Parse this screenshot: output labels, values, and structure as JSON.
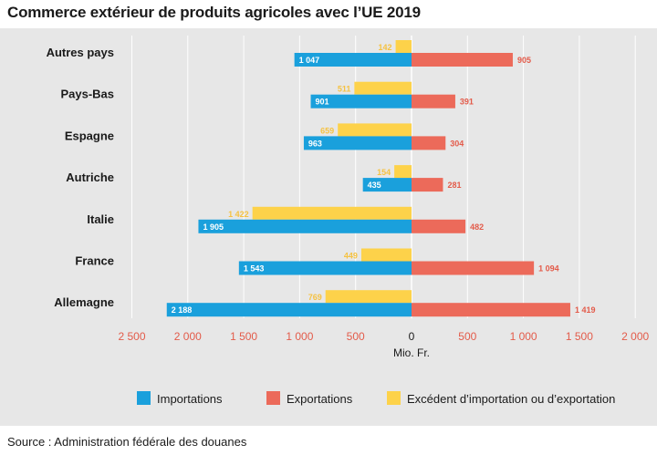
{
  "chart_data": {
    "type": "bar",
    "orientation": "horizontal",
    "title": "Commerce extérieur de produits agricoles avec l’UE 2019",
    "xlabel": "Mio. Fr.",
    "xlim": [
      -2500,
      2000
    ],
    "categories": [
      "Autres pays",
      "Pays-Bas",
      "Espagne",
      "Autriche",
      "Italie",
      "France",
      "Allemagne"
    ],
    "series": [
      {
        "name": "Importations",
        "color": "#1aa0dc",
        "values": [
          1047,
          901,
          963,
          435,
          1905,
          1543,
          2188
        ],
        "labels": [
          "1 047",
          "901",
          "963",
          "435",
          "1 905",
          "1 543",
          "2 188"
        ]
      },
      {
        "name": "Exportations",
        "color": "#ec6a5a",
        "values": [
          905,
          391,
          304,
          281,
          482,
          1094,
          1419
        ],
        "labels": [
          "905",
          "391",
          "304",
          "281",
          "482",
          "1 094",
          "1 419"
        ]
      },
      {
        "name": "Excédent d’importation ou d’exportation",
        "color": "#fdd24a",
        "values": [
          142,
          511,
          659,
          154,
          1422,
          449,
          769
        ],
        "labels": [
          "142",
          "511",
          "659",
          "154",
          "1 422",
          "449",
          "769"
        ]
      }
    ],
    "tick_values": [
      -2500,
      -2000,
      -1500,
      -1000,
      -500,
      0,
      500,
      1000,
      1500,
      2000
    ],
    "tick_labels": [
      "2 500",
      "2 000",
      "1 500",
      "1 000",
      "500",
      "0",
      "500",
      "1 000",
      "1 500",
      "2 000"
    ],
    "grid": true,
    "legend_position": "bottom"
  },
  "source": "Source : Administration fédérale des douanes"
}
